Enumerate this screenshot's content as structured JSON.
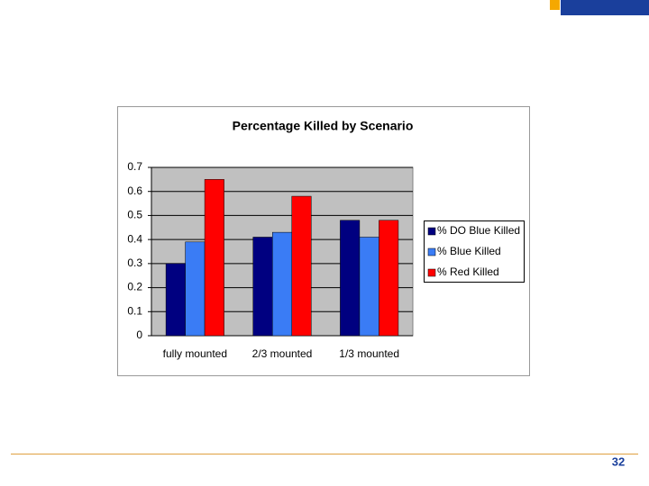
{
  "chart_data": {
    "type": "bar",
    "title": "Percentage Killed by Scenario",
    "categories": [
      "fully mounted",
      "2/3 mounted",
      "1/3 mounted"
    ],
    "series": [
      {
        "name": "% DO Blue Killed",
        "color": "#000080",
        "values": [
          0.3,
          0.41,
          0.48
        ]
      },
      {
        "name": "% Blue Killed",
        "color": "#3a7cf5",
        "values": [
          0.39,
          0.43,
          0.41
        ]
      },
      {
        "name": "% Red Killed",
        "color": "#ff0000",
        "values": [
          0.65,
          0.58,
          0.48
        ]
      }
    ],
    "ylim": [
      0,
      0.7
    ],
    "yticks": [
      0,
      0.1,
      0.2,
      0.3,
      0.4,
      0.5,
      0.6,
      0.7
    ],
    "grid": true,
    "legend": "right"
  },
  "page_number": "32"
}
